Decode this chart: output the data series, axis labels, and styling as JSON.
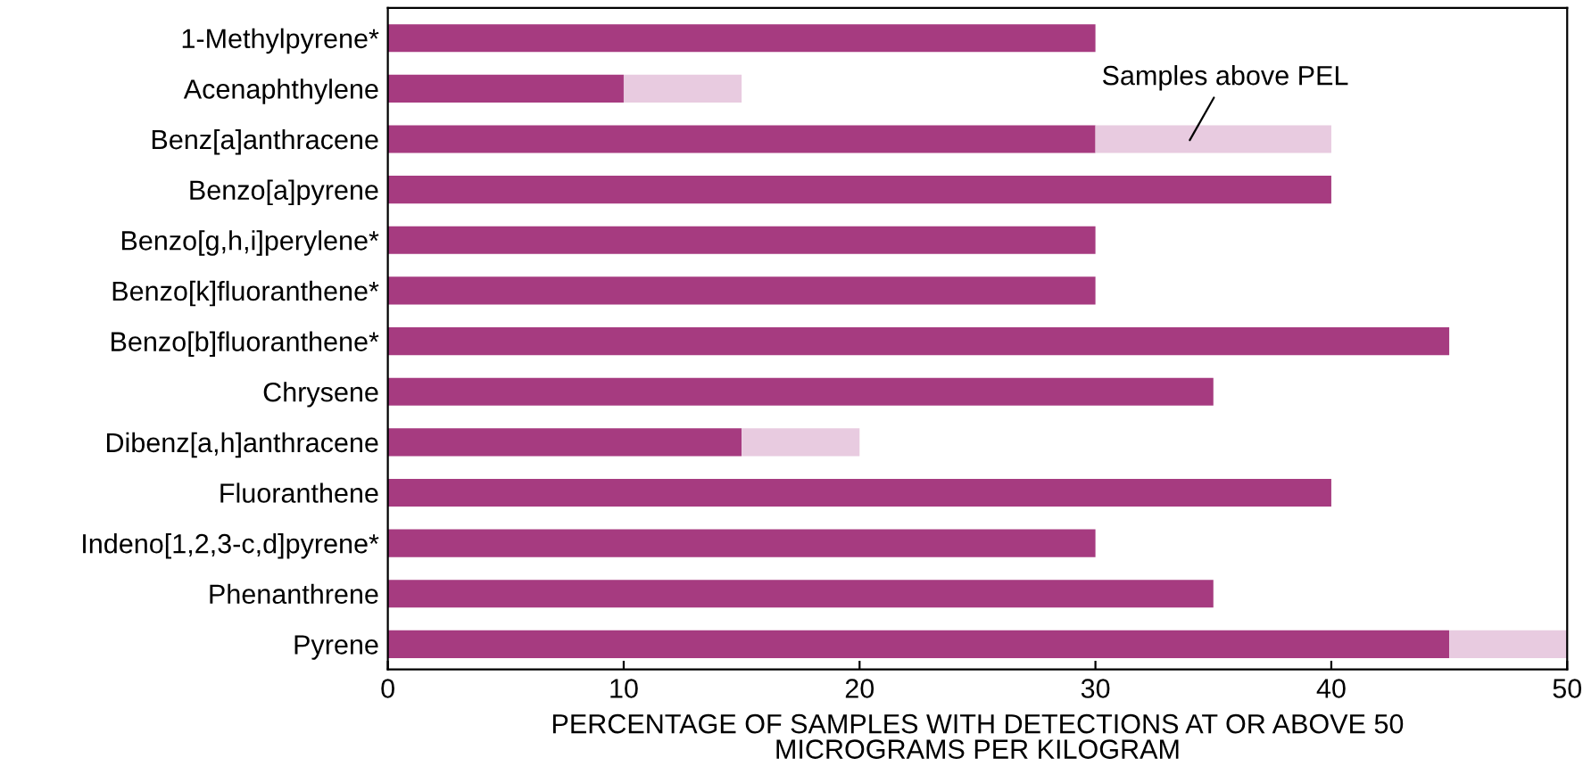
{
  "chart_data": {
    "type": "bar",
    "orientation": "horizontal",
    "stacked": true,
    "categories": [
      "1-Methylpyrene*",
      "Acenaphthylene",
      "Benz[a]anthracene",
      "Benzo[a]pyrene",
      "Benzo[g,h,i]perylene*",
      "Benzo[k]fluoranthene*",
      "Benzo[b]fluoranthene*",
      "Chrysene",
      "Dibenz[a,h]anthracene",
      "Fluoranthene",
      "Indeno[1,2,3-c,d]pyrene*",
      "Phenanthrene",
      "Pyrene"
    ],
    "series": [
      {
        "color": "#a63b80",
        "values": [
          30,
          10,
          30,
          40,
          30,
          30,
          45,
          35,
          15,
          40,
          30,
          35,
          45
        ]
      },
      {
        "color": "#e8cbe0",
        "values": [
          0,
          5,
          10,
          0,
          0,
          0,
          0,
          0,
          5,
          0,
          0,
          0,
          5
        ]
      }
    ],
    "xlim": [
      0,
      50
    ],
    "xticks": [
      0,
      10,
      20,
      30,
      40,
      50
    ],
    "xlabel": "PERCENTAGE OF SAMPLES WITH DETECTIONS AT OR ABOVE 50\nMICROGRAMS PER KILOGRAM",
    "annotations": [
      "Samples above PEL"
    ],
    "grid": false,
    "legend": false
  }
}
